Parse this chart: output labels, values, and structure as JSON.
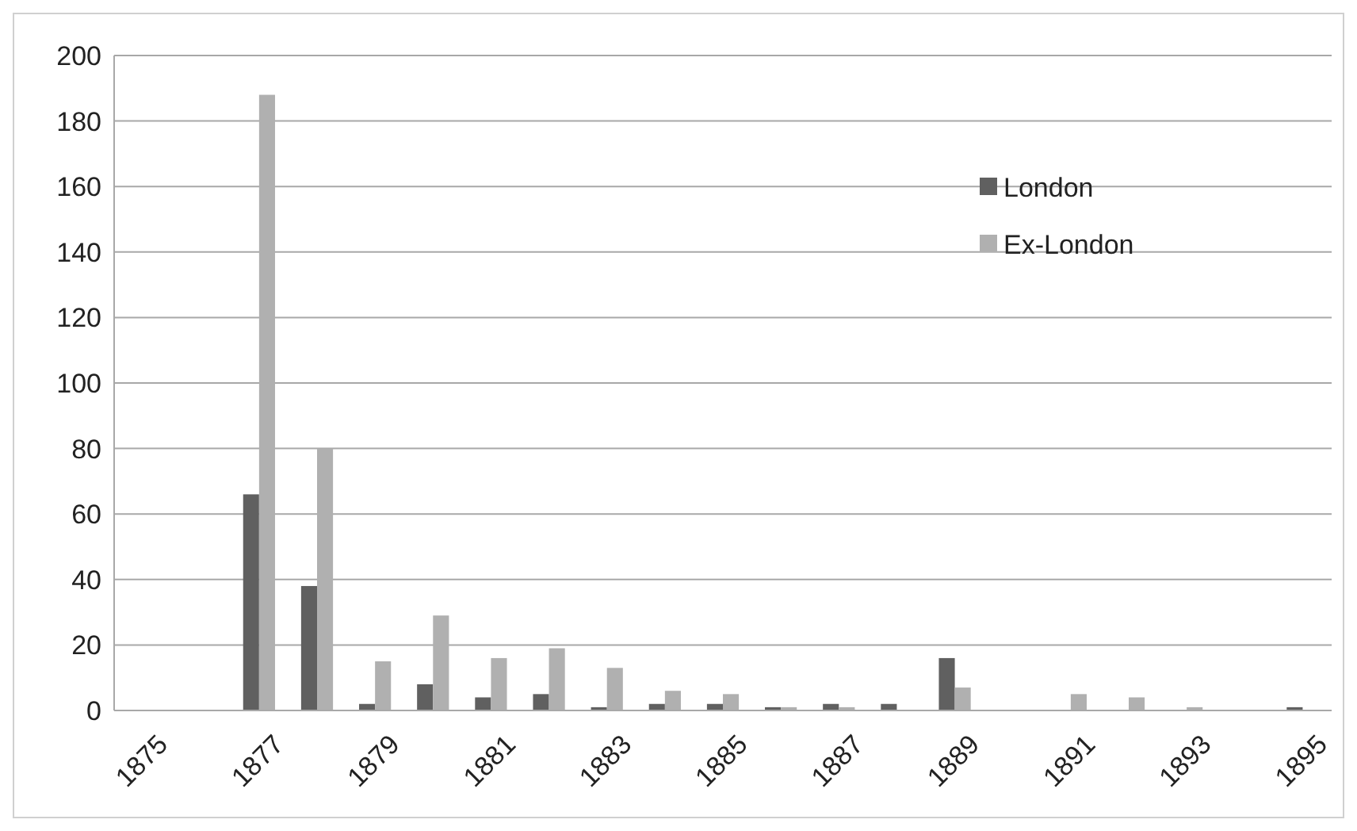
{
  "chart_data": {
    "type": "bar",
    "categories": [
      "1875",
      null,
      "1877",
      null,
      "1879",
      null,
      "1881",
      null,
      "1883",
      null,
      "1885",
      null,
      "1887",
      null,
      "1889",
      null,
      "1891",
      null,
      "1893",
      null,
      "1895"
    ],
    "series": [
      {
        "name": "London",
        "color": "#606060",
        "values": [
          0,
          0,
          66,
          38,
          2,
          8,
          4,
          5,
          1,
          2,
          2,
          1,
          2,
          2,
          16,
          0,
          0,
          0,
          0,
          0,
          1
        ]
      },
      {
        "name": "Ex-London",
        "color": "#b0b0b0",
        "values": [
          0,
          0,
          188,
          80,
          15,
          29,
          16,
          19,
          13,
          6,
          5,
          1,
          1,
          0,
          7,
          0,
          5,
          4,
          1,
          0,
          0
        ]
      }
    ],
    "ylim": [
      0,
      200
    ],
    "yticks": [
      0,
      20,
      40,
      60,
      80,
      100,
      120,
      140,
      160,
      180,
      200
    ],
    "grid": "y",
    "legend": "top right"
  }
}
